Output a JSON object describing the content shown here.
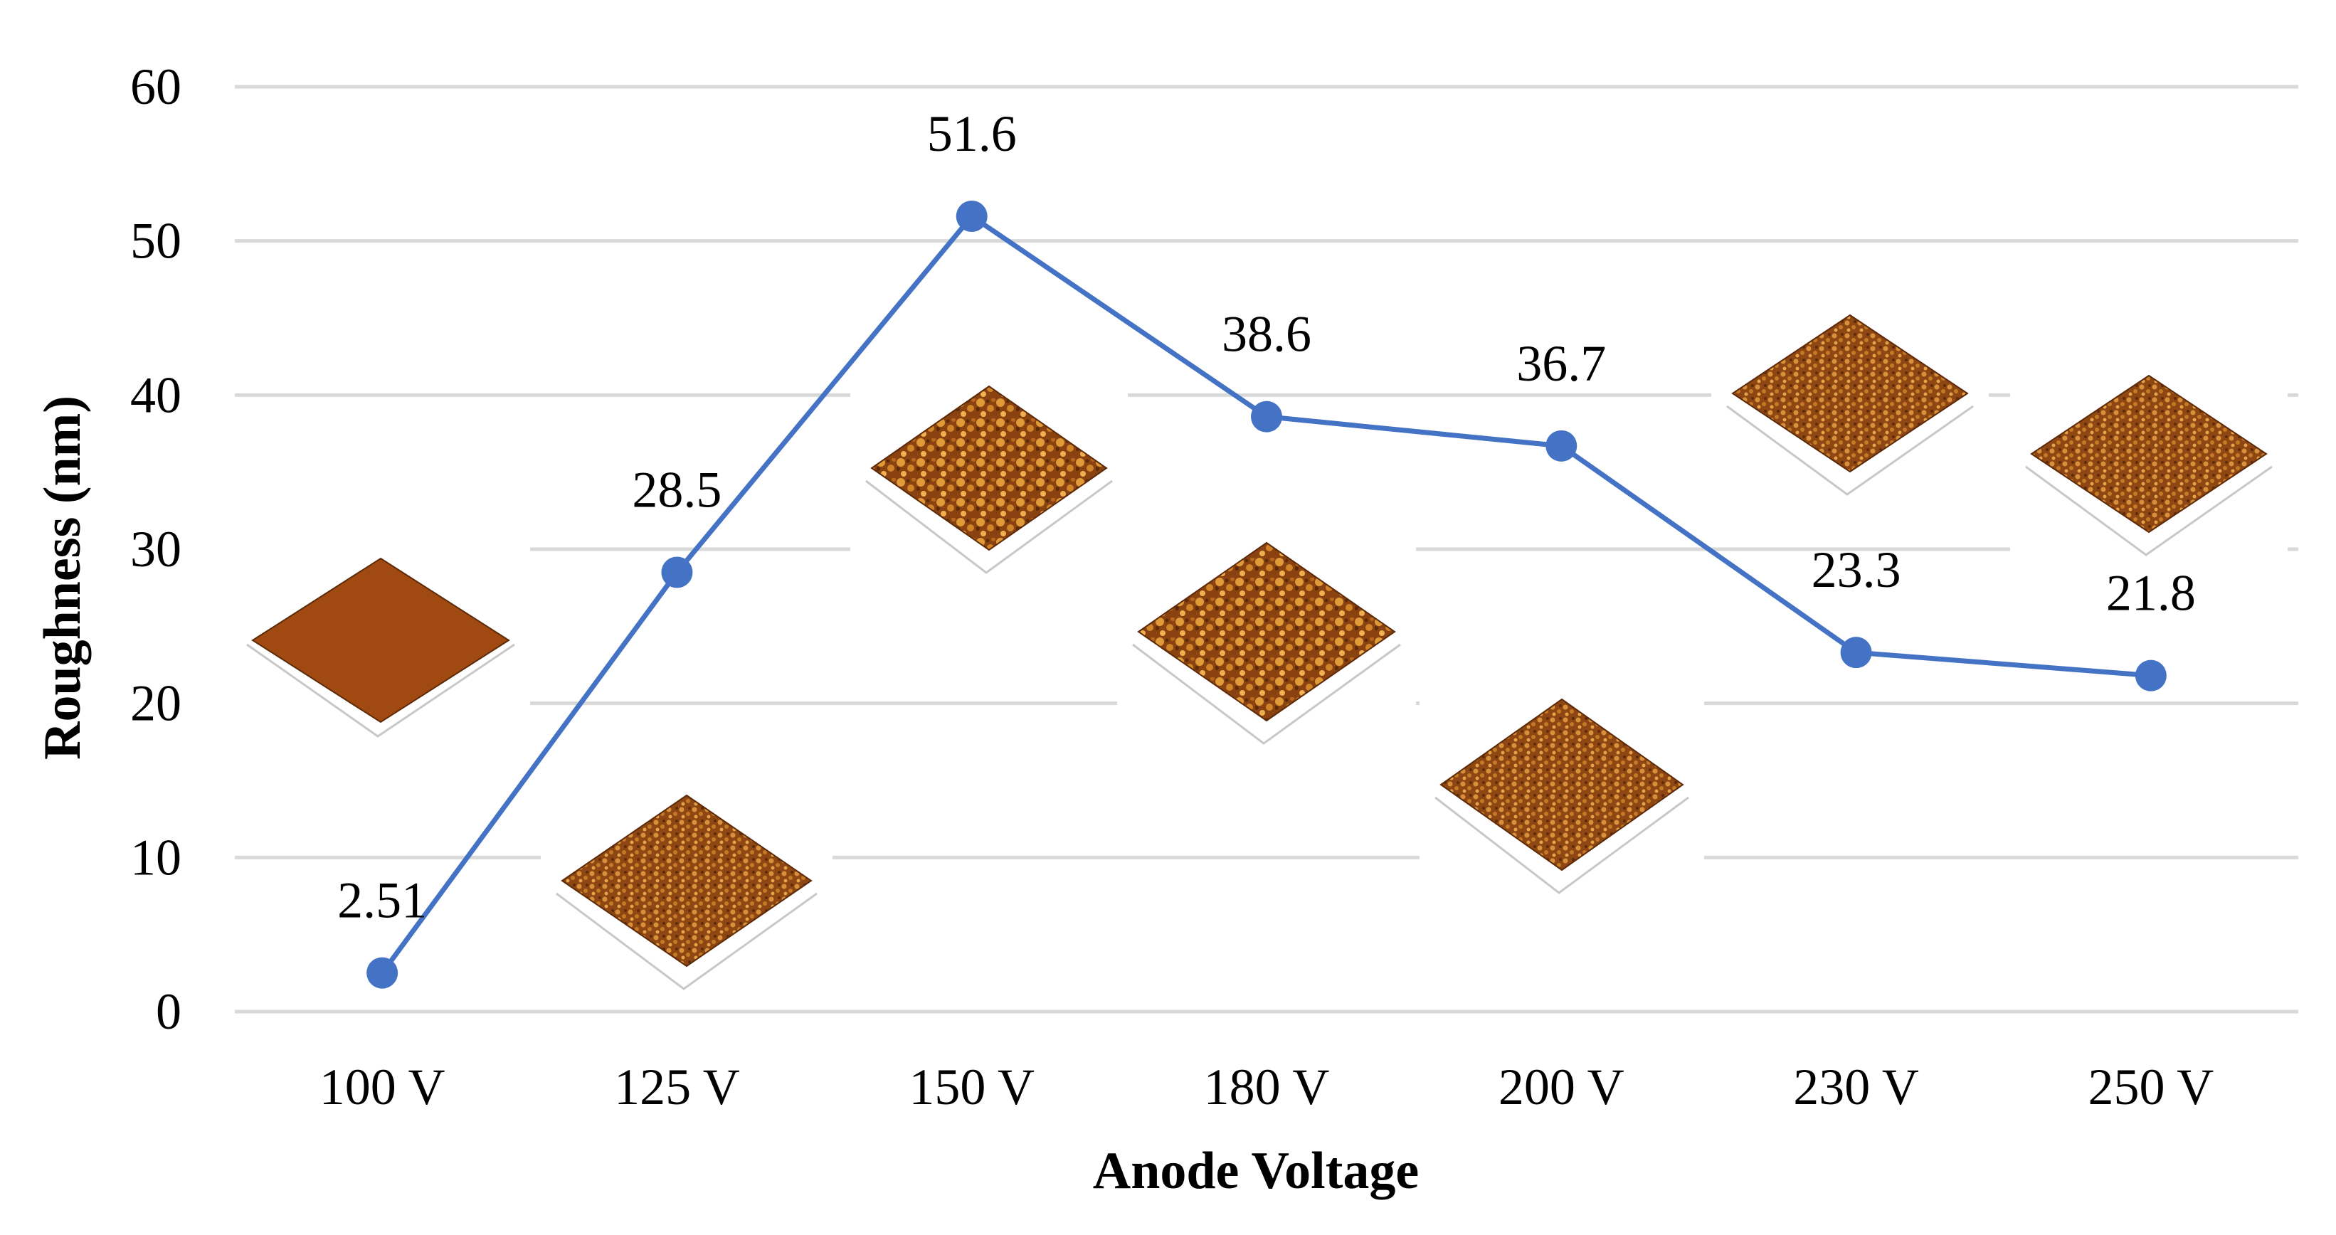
{
  "chart_data": {
    "type": "line",
    "title": "",
    "xlabel": "Anode Voltage",
    "ylabel": "Roughness (nm)",
    "categories": [
      "100 V",
      "125 V",
      "150 V",
      "180 V",
      "200 V",
      "230 V",
      "250 V"
    ],
    "series": [
      {
        "name": "Roughness",
        "values": [
          2.51,
          28.5,
          51.6,
          38.6,
          36.7,
          23.3,
          21.8
        ],
        "data_labels": [
          "2.51",
          "28.5",
          "51.6",
          "38.6",
          "36.7",
          "23.3",
          "21.8"
        ],
        "color": "#4472c4"
      }
    ],
    "ylim": [
      0,
      60
    ],
    "yticks": [
      0,
      10,
      20,
      30,
      40,
      50,
      60
    ],
    "grid": true,
    "legend": "none",
    "inset_images": "AFM 3D surface topography thumbnails, one per anode voltage"
  },
  "colors": {
    "line": "#4472c4",
    "grid": "#d9d9d9",
    "afm_light": "#e8a038",
    "afm_mid": "#b8621a",
    "afm_dark": "#5c2a08",
    "afm_smooth": "#a04a12"
  }
}
